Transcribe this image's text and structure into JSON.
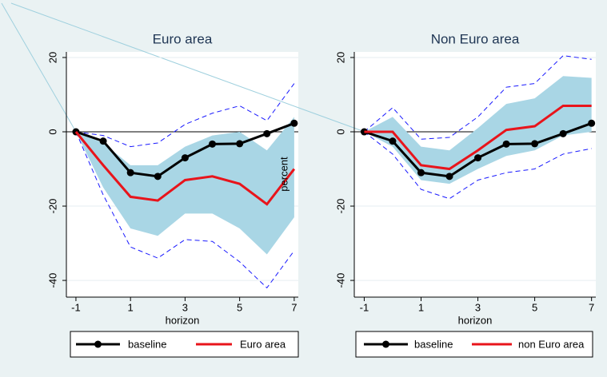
{
  "chart_data": [
    {
      "type": "line",
      "title": "Euro area",
      "xlabel": "horizon",
      "ylabel": "percent",
      "x": [
        -1,
        0,
        1,
        2,
        3,
        4,
        5,
        6,
        7
      ],
      "series": [
        {
          "name": "baseline",
          "color": "#000000",
          "values": [
            0,
            -2.5,
            -11,
            -12,
            -7,
            -3.3,
            -3.2,
            -0.5,
            2.3
          ]
        },
        {
          "name": "Euro area",
          "color": "#e8141b",
          "values": [
            0,
            -9,
            -17.5,
            -18.5,
            -13,
            -12,
            -14,
            -19.5,
            -10
          ]
        }
      ],
      "band": {
        "color": "#a9d6e5",
        "upper": [
          0,
          -3,
          -9,
          -9,
          -4,
          -1,
          0,
          -5,
          4
        ],
        "lower": [
          0,
          -15,
          -26,
          -28,
          -22,
          -22,
          -26,
          -33,
          -23
        ]
      },
      "bounds": {
        "color": "#1a1aff",
        "upper": [
          0,
          -1,
          -4,
          -3,
          2,
          5,
          7,
          3,
          13
        ],
        "lower": [
          0,
          -17,
          -31,
          -34,
          -29,
          -29.5,
          -35,
          -42,
          -32
        ]
      },
      "xlim": [
        -1.35,
        7.15
      ],
      "ylim": [
        -44.5,
        21.5
      ],
      "xticks": [
        -1,
        1,
        3,
        5,
        7
      ],
      "yticks": [
        -40,
        -20,
        0,
        20
      ],
      "grid": true
    },
    {
      "type": "line",
      "title": "Non Euro area",
      "xlabel": "horizon",
      "x": [
        -1,
        0,
        1,
        2,
        3,
        4,
        5,
        6,
        7
      ],
      "series": [
        {
          "name": "baseline",
          "color": "#000000",
          "values": [
            0,
            -2.5,
            -11,
            -12,
            -7,
            -3.3,
            -3.2,
            -0.5,
            2.3
          ]
        },
        {
          "name": "non Euro area",
          "color": "#e8141b",
          "values": [
            0,
            0,
            -9,
            -10,
            -5,
            0.5,
            1.5,
            7,
            7
          ]
        }
      ],
      "band": {
        "color": "#a9d6e5",
        "upper": [
          0,
          4,
          -4,
          -5,
          1,
          7.5,
          9,
          15,
          14.5
        ],
        "lower": [
          0,
          -4,
          -13,
          -14,
          -10,
          -6.5,
          -5,
          -1,
          0
        ]
      },
      "bounds": {
        "color": "#1a1aff",
        "upper": [
          0,
          6.5,
          -2,
          -1.5,
          4,
          12,
          13,
          20.5,
          19.5
        ],
        "lower": [
          0,
          -6,
          -15.5,
          -18,
          -13,
          -11,
          -10,
          -6,
          -4.5
        ]
      },
      "xlim": [
        -1.35,
        7.15
      ],
      "ylim": [
        -44.5,
        21.5
      ],
      "xticks": [
        -1,
        1,
        3,
        5,
        7
      ],
      "yticks": [
        -40,
        -20,
        0,
        20
      ],
      "grid": true
    }
  ]
}
